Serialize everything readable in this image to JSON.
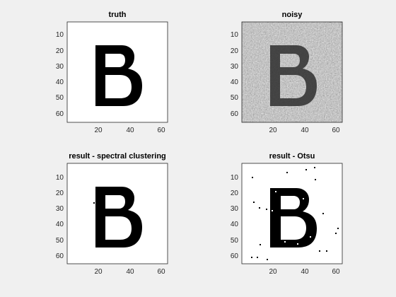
{
  "figure": {
    "background": "#f0f0f0"
  },
  "chart_data": [
    {
      "type": "heatmap",
      "title": "truth",
      "image": "clean-letter-B",
      "xlim": [
        1,
        65
      ],
      "ylim": [
        1,
        65
      ],
      "xticks": [
        20,
        40,
        60
      ],
      "yticks": [
        10,
        20,
        30,
        40,
        50,
        60
      ],
      "colormap": "gray"
    },
    {
      "type": "heatmap",
      "title": "noisy",
      "image": "noisy-letter-B",
      "xlim": [
        1,
        65
      ],
      "ylim": [
        1,
        65
      ],
      "xticks": [
        20,
        40,
        60
      ],
      "yticks": [
        10,
        20,
        30,
        40,
        50,
        60
      ],
      "colormap": "gray"
    },
    {
      "type": "heatmap",
      "title": "result - spectral clustering",
      "image": "segmented-letter-B",
      "xlim": [
        1,
        65
      ],
      "ylim": [
        1,
        65
      ],
      "xticks": [
        20,
        40,
        60
      ],
      "yticks": [
        10,
        20,
        30,
        40,
        50,
        60
      ],
      "colormap": "gray"
    },
    {
      "type": "heatmap",
      "title": "result - Otsu",
      "image": "otsu-letter-B-with-speckle",
      "xlim": [
        1,
        65
      ],
      "ylim": [
        1,
        65
      ],
      "xticks": [
        20,
        40,
        60
      ],
      "yticks": [
        10,
        20,
        30,
        40,
        50,
        60
      ],
      "colormap": "gray"
    }
  ]
}
